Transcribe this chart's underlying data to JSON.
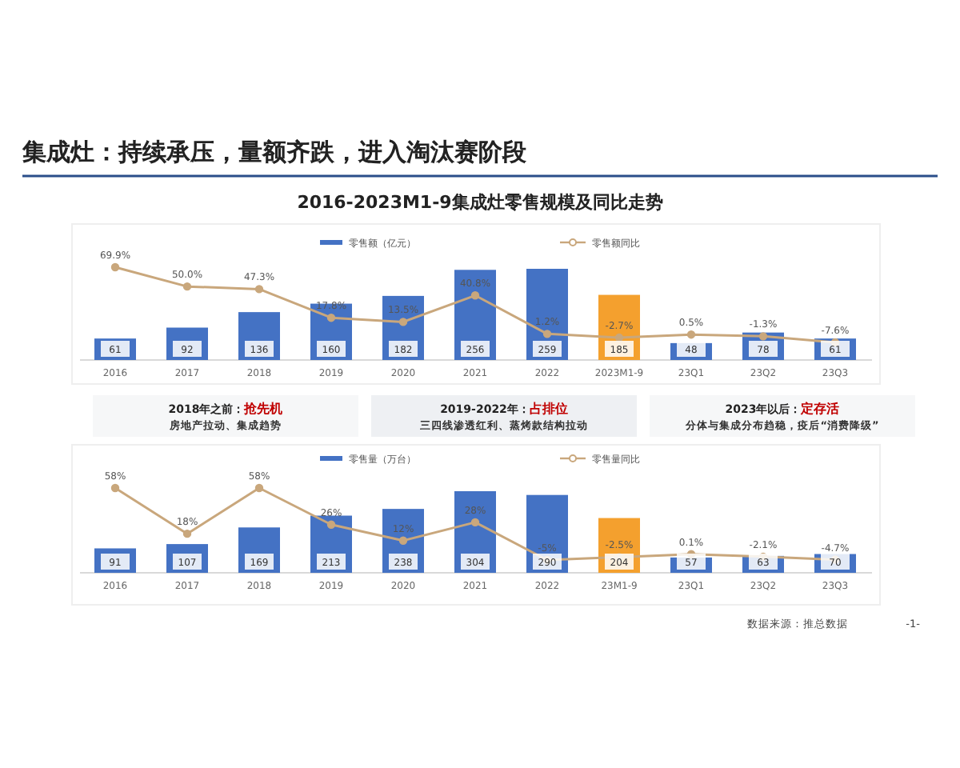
{
  "chart_data": [
    {
      "type": "bar",
      "title": "集成灶：持续承压，量额齐跌，进入淘汰赛阶段",
      "subtitle": "2016-2023M1-9集成灶零售规模及同比走势",
      "categories": [
        "2016",
        "2017",
        "2018",
        "2019",
        "2020",
        "2021",
        "2022",
        "2023M1-9",
        "23Q1",
        "23Q2",
        "23Q3"
      ],
      "series": [
        {
          "name": "零售额（亿元）",
          "color": "#4472c4",
          "colors": [
            "#4472c4",
            "#4472c4",
            "#4472c4",
            "#4472c4",
            "#4472c4",
            "#4472c4",
            "#4472c4",
            "#f4a02e",
            "#4472c4",
            "#4472c4",
            "#4472c4"
          ],
          "values": [
            61,
            92,
            136,
            160,
            182,
            256,
            259,
            185,
            48,
            78,
            61
          ]
        },
        {
          "name": "零售额同比",
          "type": "line",
          "axis": "y2",
          "color": "#c9a77c",
          "marker": "circle",
          "values": [
            69.9,
            50.0,
            47.3,
            17.8,
            13.5,
            40.8,
            1.2,
            -2.7,
            0.5,
            -1.3,
            -7.6
          ],
          "value_labels": [
            "69.9%",
            "50.0%",
            "47.3%",
            "17.8%",
            "13.5%",
            "40.8%",
            "1.2%",
            "-2.7%",
            "0.5%",
            "-1.3%",
            "-7.6%"
          ]
        }
      ],
      "data_labels": true,
      "legend": "top",
      "grid": false,
      "annotations": [
        "2018年之前：抢先机",
        "房地产拉动、集成趋势",
        "2019-2022年：占排位",
        "三四线渗透红利、蒸烤款结构拉动",
        "2023年以后：定存活",
        "分体与集成分布趋稳，疫后“消费降级”"
      ]
    },
    {
      "type": "bar",
      "categories": [
        "2016",
        "2017",
        "2018",
        "2019",
        "2020",
        "2021",
        "2022",
        "23M1-9",
        "23Q1",
        "23Q2",
        "23Q3"
      ],
      "series": [
        {
          "name": "零售量（万台）",
          "color": "#4472c4",
          "colors": [
            "#4472c4",
            "#4472c4",
            "#4472c4",
            "#4472c4",
            "#4472c4",
            "#4472c4",
            "#4472c4",
            "#f4a02e",
            "#4472c4",
            "#4472c4",
            "#4472c4"
          ],
          "values": [
            91,
            107,
            169,
            213,
            238,
            304,
            290,
            204,
            57,
            63,
            70
          ]
        },
        {
          "name": "零售量同比",
          "type": "line",
          "axis": "y2",
          "color": "#c9a77c",
          "marker": "circle",
          "values": [
            58,
            18,
            58,
            26,
            12,
            28,
            -5,
            -2.5,
            0.1,
            -2.1,
            -4.7
          ],
          "value_labels": [
            "58%",
            "18%",
            "58%",
            "26%",
            "12%",
            "28%",
            "-5%",
            "-2.5%",
            "0.1%",
            "-2.1%",
            "-4.7%"
          ]
        }
      ],
      "data_labels": true,
      "legend": "top",
      "grid": false,
      "annotations": [
        "数据来源：推总数据",
        "-1-"
      ]
    }
  ]
}
